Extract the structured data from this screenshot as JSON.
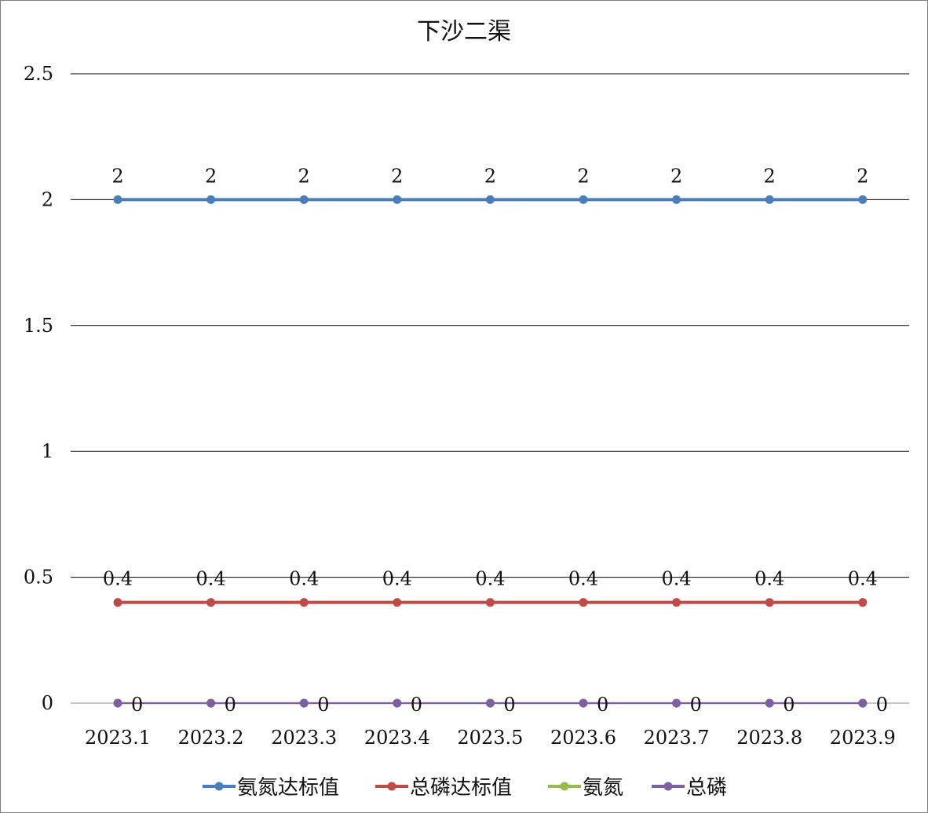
{
  "chart_data": {
    "type": "line",
    "title": "下沙二渠",
    "xlabel": "",
    "ylabel": "",
    "categories": [
      "2023.1",
      "2023.2",
      "2023.3",
      "2023.4",
      "2023.5",
      "2023.6",
      "2023.7",
      "2023.8",
      "2023.9"
    ],
    "ylim": [
      0,
      2.5
    ],
    "yticks": [
      "0",
      "0.5",
      "1",
      "1.5",
      "2",
      "2.5"
    ],
    "grid": true,
    "legend_position": "bottom",
    "series": [
      {
        "name": "氨氮达标值",
        "color": "#4a7ebb",
        "values": [
          2,
          2,
          2,
          2,
          2,
          2,
          2,
          2,
          2
        ],
        "labels": [
          "2",
          "2",
          "2",
          "2",
          "2",
          "2",
          "2",
          "2",
          "2"
        ],
        "label_position": "above"
      },
      {
        "name": "总磷达标值",
        "color": "#be4b48",
        "values": [
          0.4,
          0.4,
          0.4,
          0.4,
          0.4,
          0.4,
          0.4,
          0.4,
          0.4
        ],
        "labels": [
          "0.4",
          "0.4",
          "0.4",
          "0.4",
          "0.4",
          "0.4",
          "0.4",
          "0.4",
          "0.4"
        ],
        "label_position": "above"
      },
      {
        "name": "氨氮",
        "color": "#98b954",
        "values": [
          0,
          0,
          0,
          0,
          0,
          0,
          0,
          0,
          0
        ],
        "labels": [],
        "label_position": "right"
      },
      {
        "name": "总磷",
        "color": "#7d60a0",
        "values": [
          0,
          0,
          0,
          0,
          0,
          0,
          0,
          0,
          0
        ],
        "labels": [
          "0",
          "0",
          "0",
          "0",
          "0",
          "0",
          "0",
          "0",
          "0"
        ],
        "label_position": "right"
      }
    ]
  }
}
